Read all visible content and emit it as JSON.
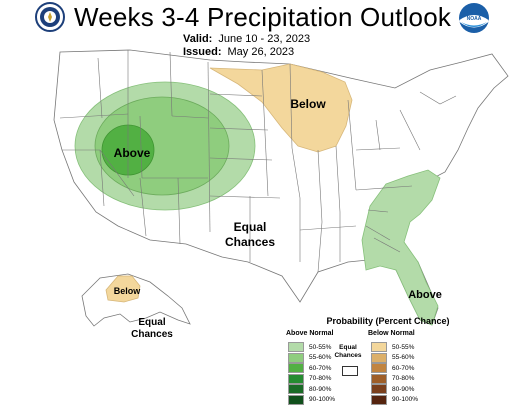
{
  "header": {
    "title": "Weeks 3-4 Precipitation Outlook",
    "valid_label": "Valid:",
    "valid_value": "June 10 - 23, 2023",
    "issued_label": "Issued:",
    "issued_value": "May 26, 2023",
    "noaa_text": "NOAA"
  },
  "map": {
    "labels": {
      "above_west": "Above",
      "below_north": "Below",
      "equal_center_1": "Equal",
      "equal_center_2": "Chances",
      "above_southeast": "Above",
      "below_alaska": "Below",
      "equal_alaska_1": "Equal",
      "equal_alaska_2": "Chances"
    }
  },
  "legend": {
    "title": "Probability (Percent Chance)",
    "above_heading": "Above Normal",
    "below_heading": "Below Normal",
    "equal_label_1": "Equal",
    "equal_label_2": "Chances",
    "above_items": [
      {
        "label": "50-55%",
        "color": "#b3dba9"
      },
      {
        "label": "55-60%",
        "color": "#8fcd7e"
      },
      {
        "label": "60-70%",
        "color": "#52b043"
      },
      {
        "label": "70-80%",
        "color": "#258c30"
      },
      {
        "label": "80-90%",
        "color": "#1a6b26"
      },
      {
        "label": "90-100%",
        "color": "#11501c"
      }
    ],
    "below_items": [
      {
        "label": "50-55%",
        "color": "#f3d79c"
      },
      {
        "label": "55-60%",
        "color": "#dcb06a"
      },
      {
        "label": "60-70%",
        "color": "#c18440"
      },
      {
        "label": "70-80%",
        "color": "#9e5e28"
      },
      {
        "label": "80-90%",
        "color": "#7a3f1c"
      },
      {
        "label": "90-100%",
        "color": "#55240f"
      }
    ]
  },
  "colors": {
    "above_light": "#b3dba9",
    "above_mid": "#8fcd7e",
    "above_dark": "#52b043",
    "below_light": "#f3d79c",
    "boundary": "#777777"
  }
}
